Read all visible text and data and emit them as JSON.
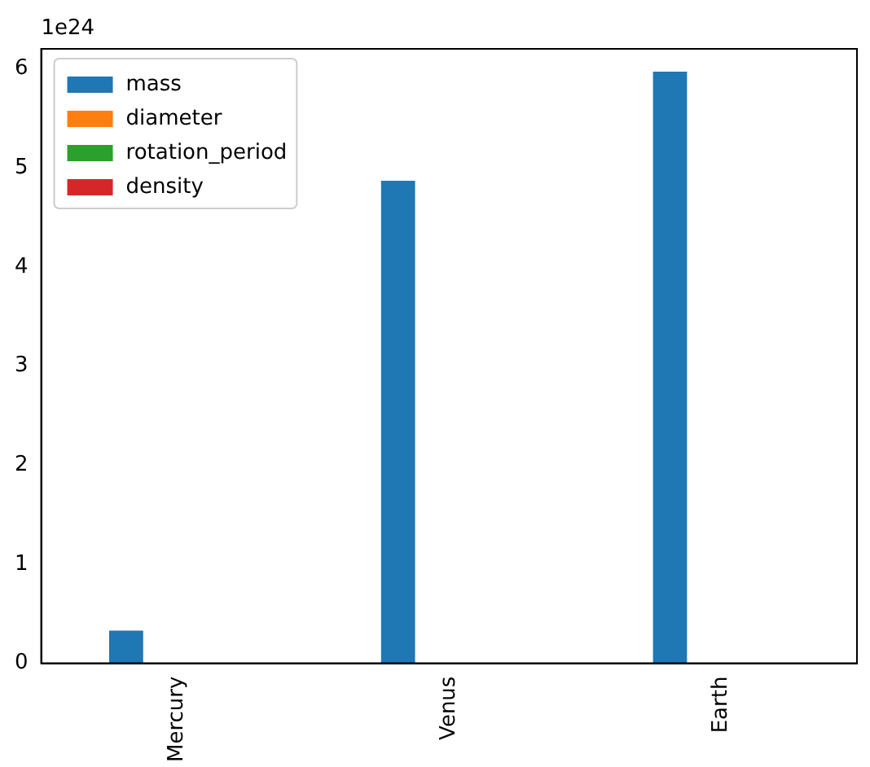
{
  "chart_data": {
    "type": "bar",
    "categories": [
      "Mercury",
      "Venus",
      "Earth"
    ],
    "series": [
      {
        "name": "mass",
        "color": "#1f77b4",
        "values": [
          0.33,
          4.87,
          5.97
        ]
      },
      {
        "name": "diameter",
        "color": "#ff7f0e",
        "values": [
          0,
          0,
          0
        ]
      },
      {
        "name": "rotation_period",
        "color": "#2ca02c",
        "values": [
          0,
          0,
          0
        ]
      },
      {
        "name": "density",
        "color": "#d62728",
        "values": [
          0,
          0,
          0
        ]
      }
    ],
    "ylim": [
      0,
      6.2
    ],
    "yticks": [
      0,
      1,
      2,
      3,
      4,
      5,
      6
    ],
    "annotations": [
      "1e24"
    ],
    "grid": false,
    "legend": "top left"
  }
}
